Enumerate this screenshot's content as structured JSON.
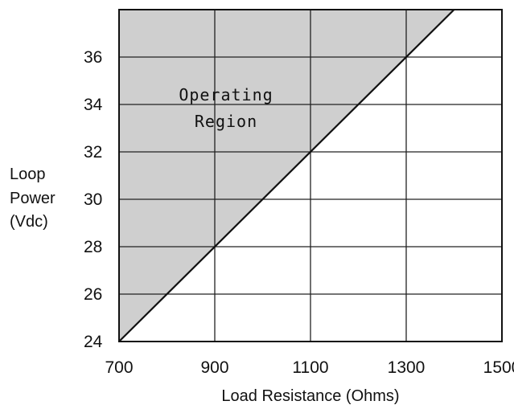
{
  "chart_data": {
    "type": "area",
    "title": "",
    "xlabel": "Load Resistance (Ohms)",
    "ylabel": [
      "Loop",
      "Power",
      "(Vdc)"
    ],
    "xlim": [
      700,
      1500
    ],
    "ylim": [
      24,
      38
    ],
    "xticks": [
      700,
      900,
      1100,
      1300,
      1500
    ],
    "yticks": [
      24,
      26,
      28,
      30,
      32,
      34,
      36
    ],
    "xtick_labels": [
      "700",
      "900",
      "1100",
      "1300",
      "1500"
    ],
    "ytick_labels": [
      "24",
      "26",
      "28",
      "30",
      "32",
      "34",
      "36"
    ],
    "grid": true,
    "series": [
      {
        "x": [
          700,
          1400
        ],
        "y": [
          24,
          38
        ]
      }
    ],
    "annotation": [
      "Operating",
      "Region"
    ],
    "colors": {
      "region": "#cfcfcf",
      "line": "#111111",
      "grid": "#222222"
    }
  }
}
